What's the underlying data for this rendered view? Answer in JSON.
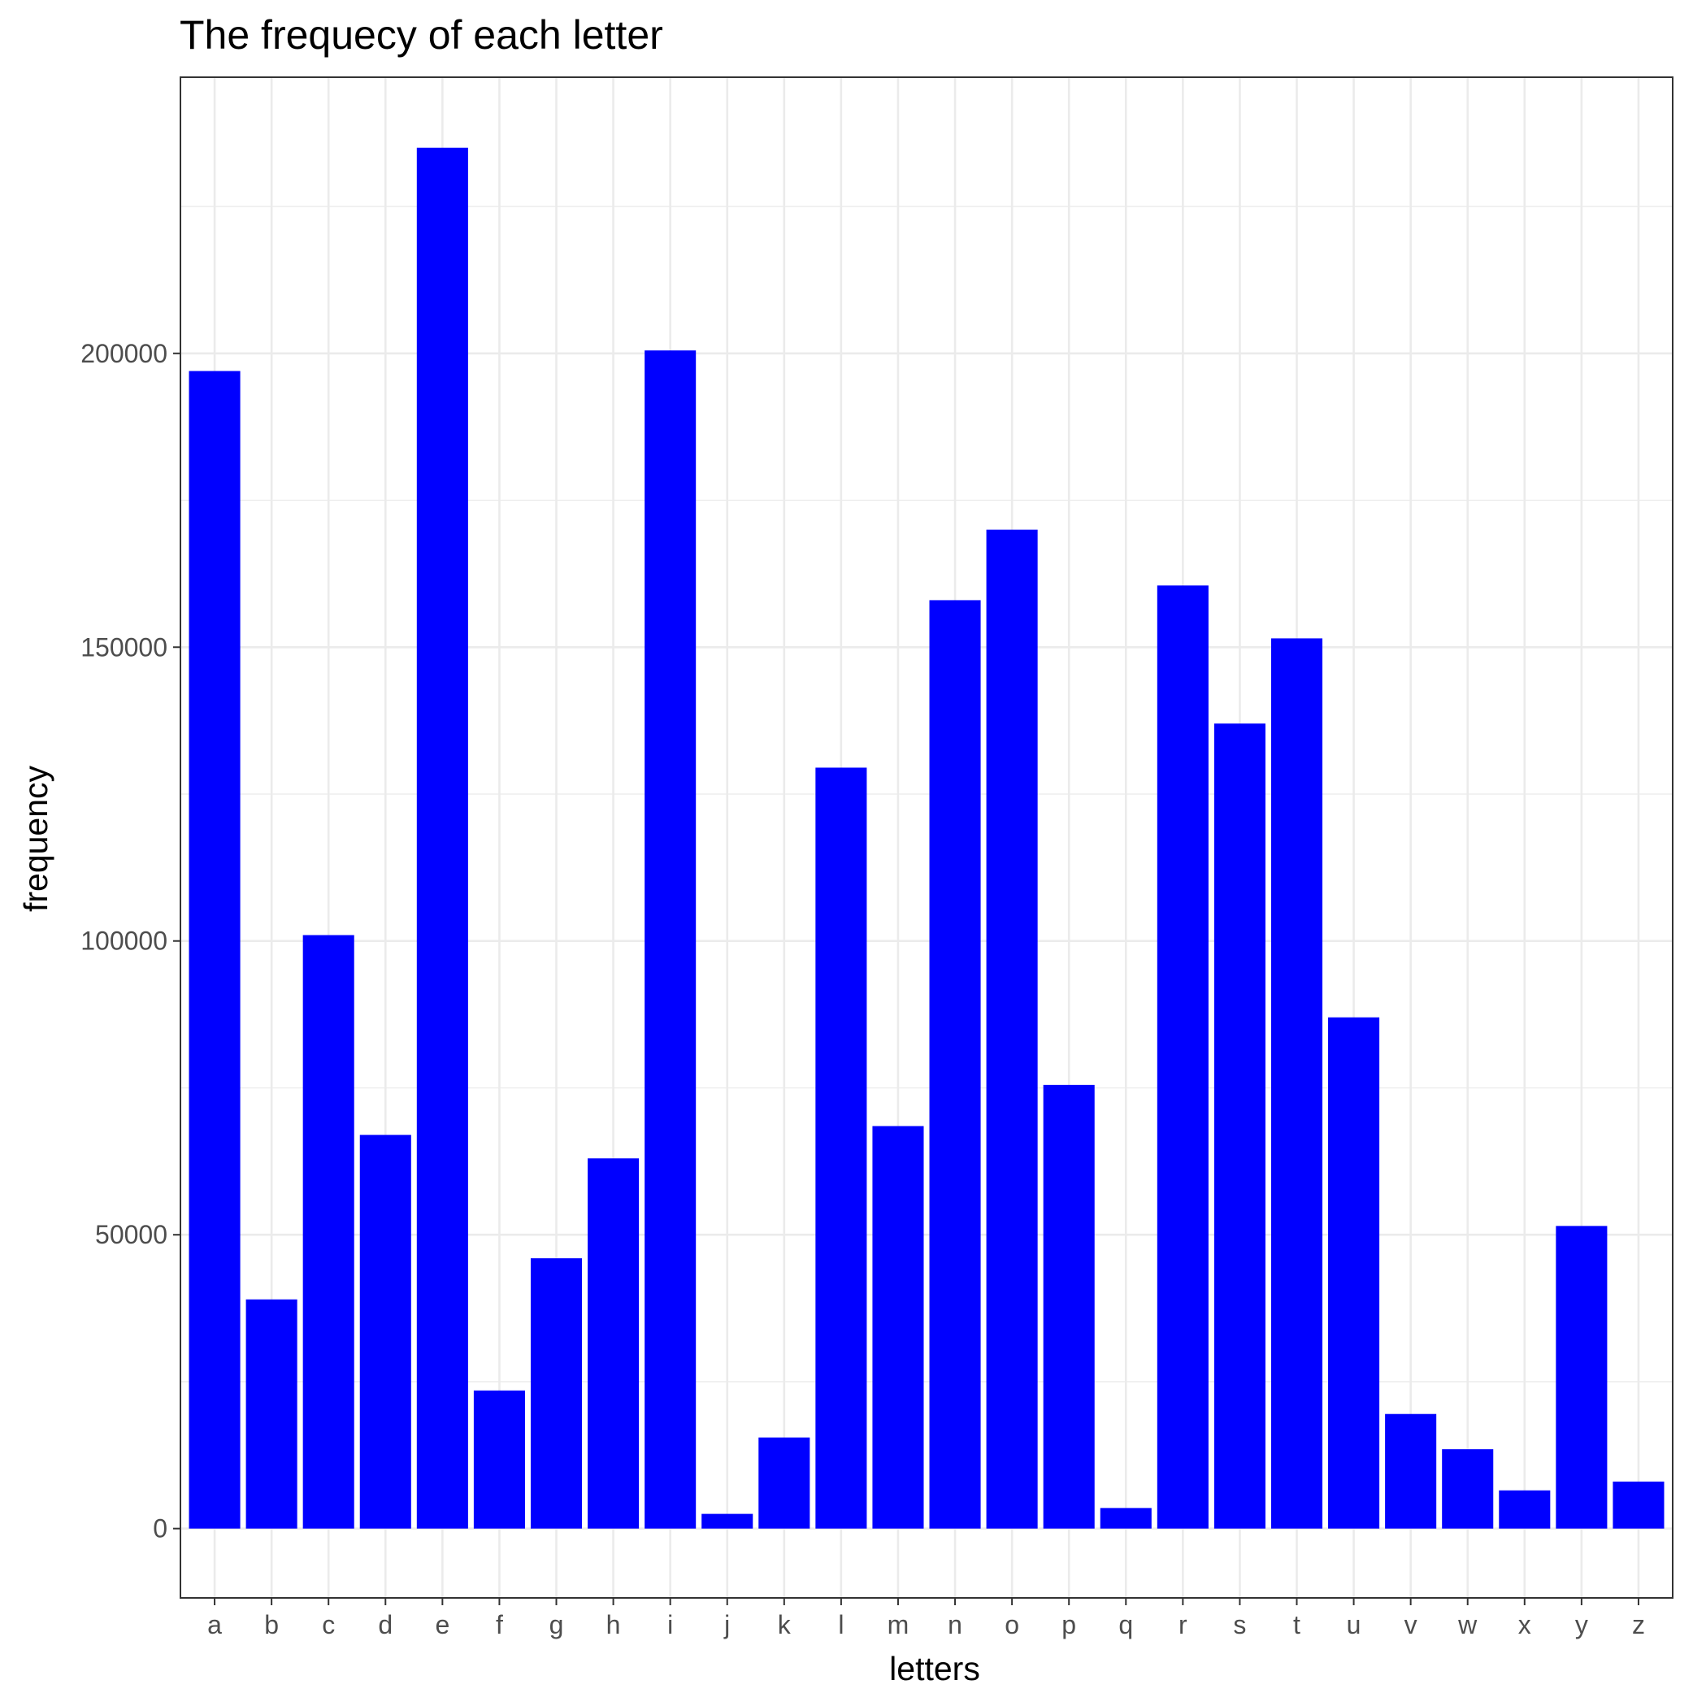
{
  "chart_data": {
    "type": "bar",
    "title": "The frequecy of each letter",
    "xlabel": "letters",
    "ylabel": "frequency",
    "categories": [
      "a",
      "b",
      "c",
      "d",
      "e",
      "f",
      "g",
      "h",
      "i",
      "j",
      "k",
      "l",
      "m",
      "n",
      "o",
      "p",
      "q",
      "r",
      "s",
      "t",
      "u",
      "v",
      "w",
      "x",
      "y",
      "z"
    ],
    "values": [
      197000,
      39000,
      101000,
      67000,
      235000,
      23500,
      46000,
      63000,
      200500,
      2500,
      15500,
      129500,
      68500,
      158000,
      170000,
      75500,
      3500,
      160500,
      137000,
      151500,
      87000,
      19500,
      13500,
      6500,
      51500,
      8000
    ],
    "yticks": [
      0,
      50000,
      100000,
      150000,
      200000
    ],
    "ytick_labels": [
      "0",
      "50000",
      "100000",
      "150000",
      "200000"
    ],
    "ylim": [
      -11800,
      247000
    ],
    "grid": true,
    "bar_color": "#0000FF",
    "legend": "none"
  }
}
